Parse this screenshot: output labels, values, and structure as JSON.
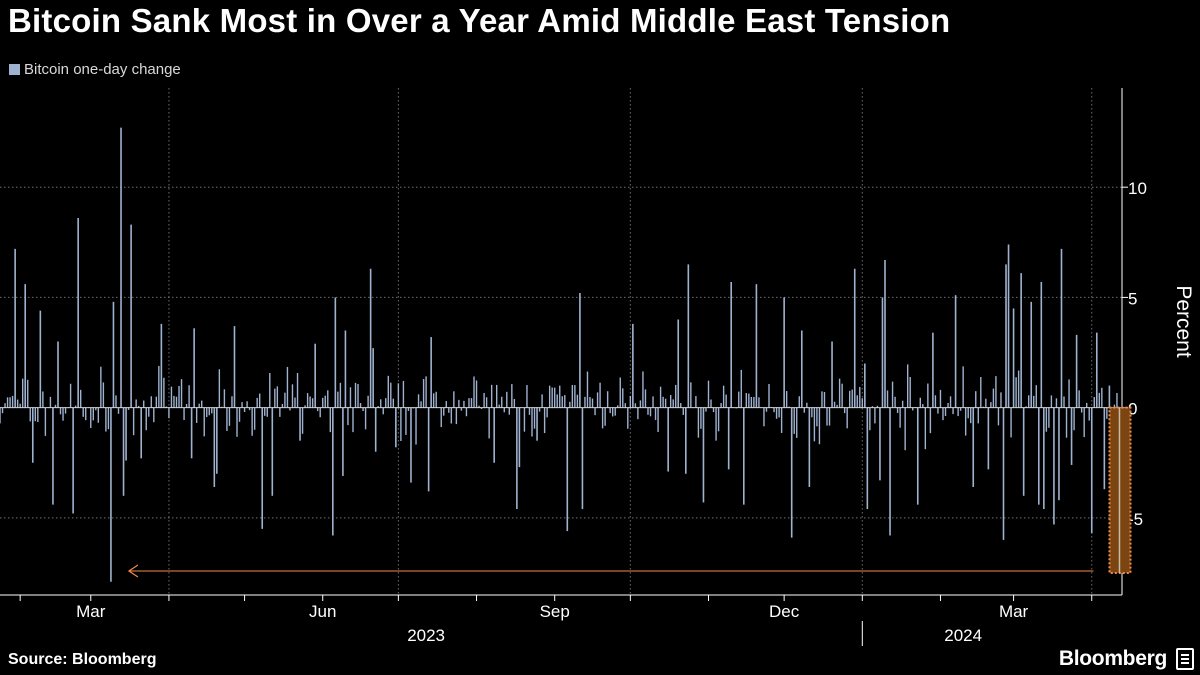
{
  "title": "Bitcoin Sank Most in Over a Year Amid Middle East Tension",
  "legend": {
    "label": "Bitcoin one-day change",
    "color": "#9fb3d1"
  },
  "footer": {
    "source": "Source: Bloomberg",
    "brand": "Bloomberg"
  },
  "highlight_color": "#f08a4b",
  "chart_data": {
    "type": "bar",
    "title": "Bitcoin Sank Most in Over a Year Amid Middle East Tension",
    "ylabel": "Percent",
    "ylim": [
      -8.5,
      14.5
    ],
    "yticks": [
      10,
      5,
      0,
      -5
    ],
    "x_start": "2023-01-24",
    "x_end": "2024-04-13",
    "grid": true,
    "legend_position": "top-left",
    "month_ticks": [
      {
        "label": "Mar",
        "date": "2023-03-01"
      },
      {
        "label": "Jun",
        "date": "2023-06-01"
      },
      {
        "label": "Sep",
        "date": "2023-09-01"
      },
      {
        "label": "Dec",
        "date": "2023-12-01"
      },
      {
        "label": "Mar",
        "date": "2024-03-01"
      }
    ],
    "year_labels": [
      {
        "label": "2023",
        "date": "2023-07-12"
      },
      {
        "label": "2024",
        "date": "2024-02-10"
      }
    ],
    "series": [
      {
        "name": "Bitcoin one-day change",
        "x": [
          "2023-01-30",
          "2023-02-03",
          "2023-02-06",
          "2023-02-09",
          "2023-02-14",
          "2023-02-16",
          "2023-02-22",
          "2023-02-24",
          "2023-03-09",
          "2023-03-10",
          "2023-03-13",
          "2023-03-14",
          "2023-03-15",
          "2023-03-17",
          "2023-03-21",
          "2023-03-29",
          "2023-04-10",
          "2023-04-11",
          "2023-04-19",
          "2023-04-20",
          "2023-04-27",
          "2023-05-08",
          "2023-05-12",
          "2023-05-23",
          "2023-05-29",
          "2023-06-05",
          "2023-06-06",
          "2023-06-09",
          "2023-06-10",
          "2023-06-20",
          "2023-06-21",
          "2023-06-22",
          "2023-06-30",
          "2023-07-06",
          "2023-07-13",
          "2023-07-14",
          "2023-08-08",
          "2023-08-17",
          "2023-08-18",
          "2023-08-25",
          "2023-09-06",
          "2023-09-11",
          "2023-09-12",
          "2023-10-02",
          "2023-10-16",
          "2023-10-20",
          "2023-10-23",
          "2023-10-24",
          "2023-10-30",
          "2023-11-09",
          "2023-11-10",
          "2023-11-15",
          "2023-11-20",
          "2023-12-01",
          "2023-12-04",
          "2023-12-08",
          "2023-12-11",
          "2023-12-20",
          "2023-12-29",
          "2024-01-02",
          "2024-01-03",
          "2024-01-08",
          "2024-01-09",
          "2024-01-10",
          "2024-01-12",
          "2024-01-23",
          "2024-01-29",
          "2024-02-07",
          "2024-02-14",
          "2024-02-20",
          "2024-02-26",
          "2024-02-27",
          "2024-02-28",
          "2024-03-01",
          "2024-03-04",
          "2024-03-05",
          "2024-03-08",
          "2024-03-11",
          "2024-03-12",
          "2024-03-13",
          "2024-03-17",
          "2024-03-19",
          "2024-03-20",
          "2024-03-24",
          "2024-03-26",
          "2024-04-01",
          "2024-04-03",
          "2024-04-06",
          "2024-04-08",
          "2024-04-12"
        ],
        "values": [
          7.2,
          5.6,
          -2.5,
          4.4,
          -4.4,
          3.0,
          -4.8,
          8.6,
          -7.9,
          4.8,
          12.7,
          -4.0,
          -2.4,
          8.3,
          -2.3,
          3.8,
          -2.3,
          3.6,
          -3.6,
          -3.0,
          3.7,
          -5.5,
          -4.0,
          -1.5,
          2.9,
          -5.8,
          5.0,
          -3.1,
          3.5,
          6.3,
          2.7,
          -2.0,
          -1.8,
          -3.4,
          -3.8,
          3.2,
          -2.5,
          -4.6,
          -2.7,
          -1.5,
          -5.6,
          5.2,
          -4.6,
          3.8,
          -2.9,
          4.0,
          -3.0,
          6.5,
          -4.3,
          -2.8,
          5.7,
          -4.4,
          5.6,
          5.0,
          -5.9,
          3.5,
          -3.6,
          3.0,
          6.3,
          2.0,
          -4.6,
          -3.3,
          5.0,
          6.7,
          -5.8,
          -4.4,
          3.4,
          5.1,
          -3.6,
          -2.8,
          -6.0,
          6.5,
          7.4,
          4.5,
          6.1,
          -4.0,
          4.8,
          -4.4,
          5.7,
          -4.6,
          -5.3,
          -4.2,
          7.2,
          -2.6,
          3.3,
          -5.7,
          3.4,
          -3.7,
          1.0,
          -7.5
        ]
      }
    ],
    "annotation": {
      "text": "",
      "highlight_date": "2024-04-12",
      "arrow_to_date": "2023-03-09"
    }
  }
}
